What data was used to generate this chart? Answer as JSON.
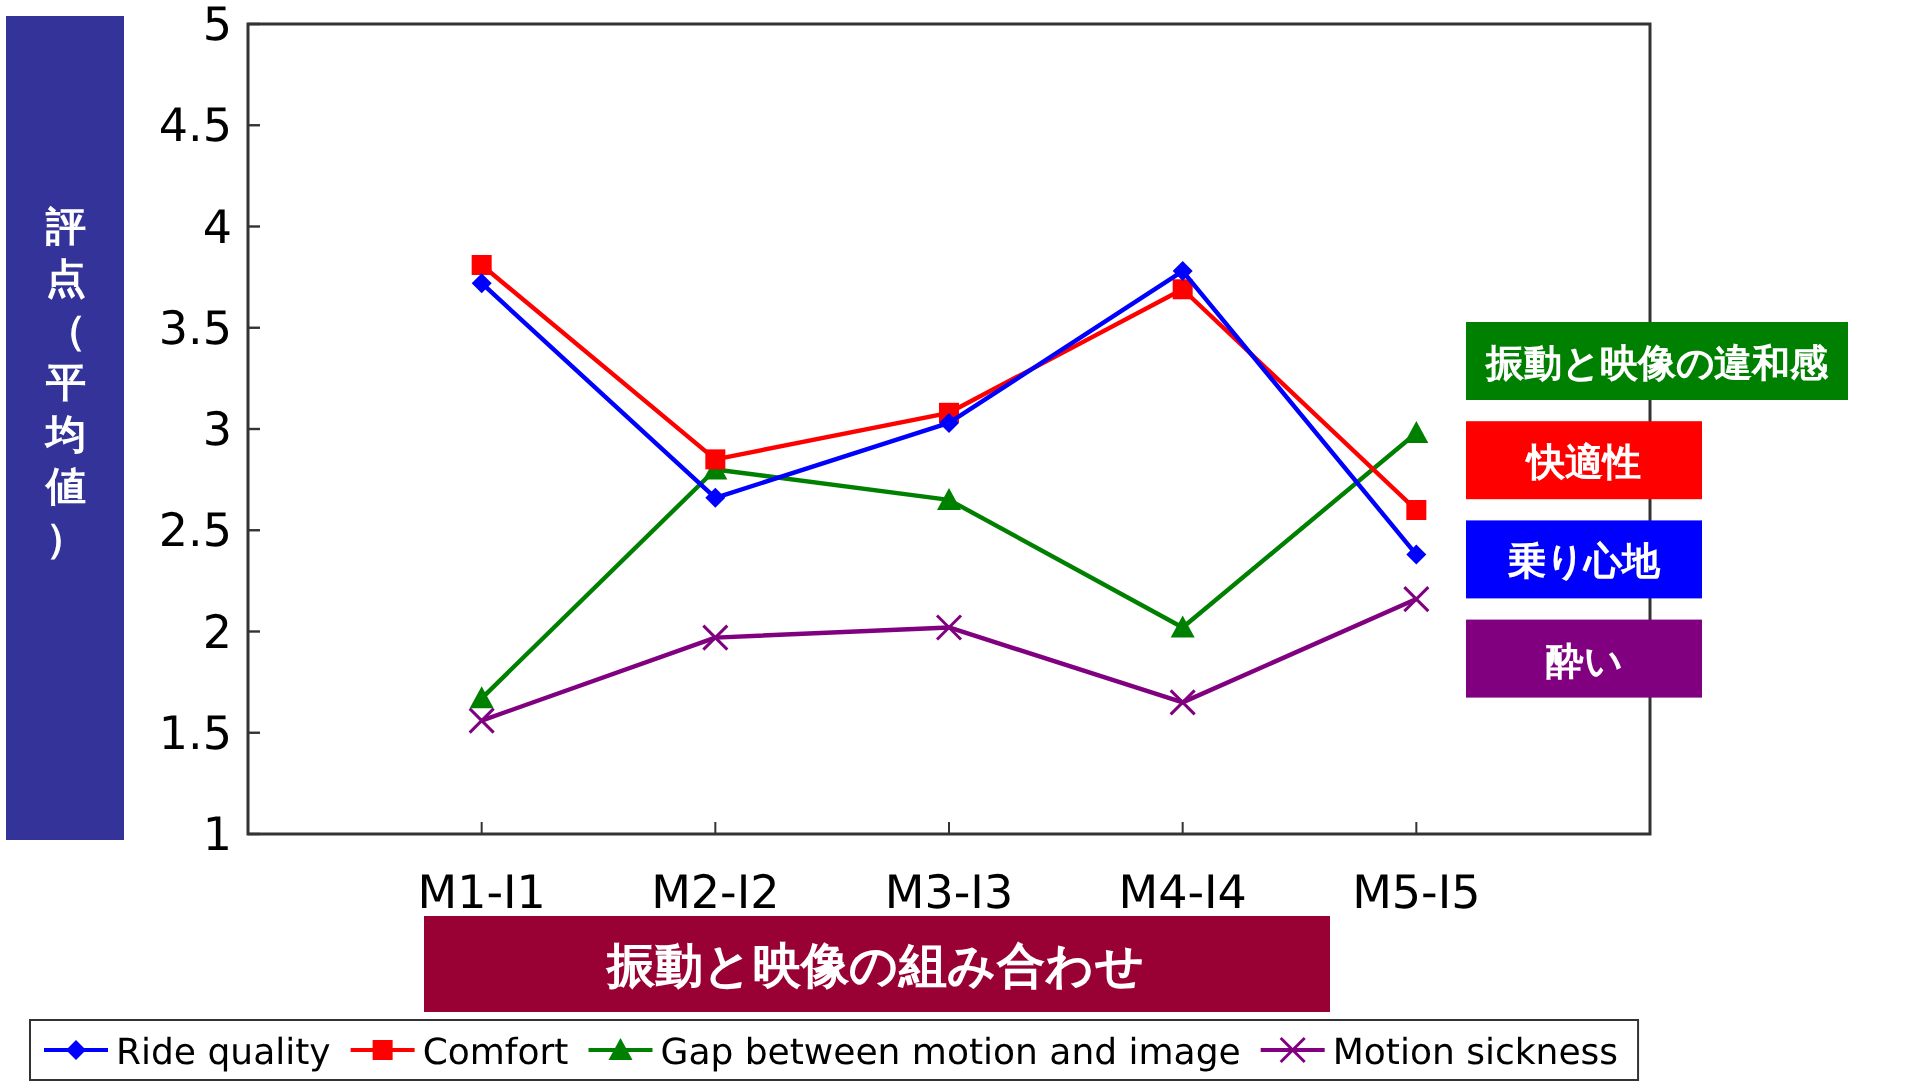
{
  "chart_data": {
    "type": "line",
    "xlabel": "振動と映像の組み合わせ",
    "ylabel": "評点（平均値）",
    "categories": [
      "M1-I1",
      "M2-I2",
      "M3-I3",
      "M4-I4",
      "M5-I5"
    ],
    "series": [
      {
        "name": "Ride quality",
        "color": "#0000ff",
        "marker": "diamond",
        "values": [
          3.72,
          2.66,
          3.03,
          3.78,
          2.38
        ]
      },
      {
        "name": "Comfort",
        "color": "#ff0000",
        "marker": "square",
        "values": [
          3.81,
          2.85,
          3.08,
          3.69,
          2.6
        ]
      },
      {
        "name": "Gap between motion and image",
        "color": "#008000",
        "marker": "triangle",
        "values": [
          1.67,
          2.8,
          2.65,
          2.02,
          2.98
        ]
      },
      {
        "name": "Motion sickness",
        "color": "#800080",
        "marker": "cross",
        "values": [
          1.56,
          1.97,
          2.02,
          1.65,
          2.16
        ]
      }
    ],
    "annotations": [
      "振動と映像の違和感",
      "快適性",
      "乗り心地",
      "酔い"
    ],
    "ylim": [
      1,
      5
    ],
    "yticks": [
      1,
      1.5,
      2,
      2.5,
      3,
      3.5,
      4,
      4.5,
      5
    ],
    "grid": false,
    "legend": "bottom",
    "line_style": "solid"
  }
}
